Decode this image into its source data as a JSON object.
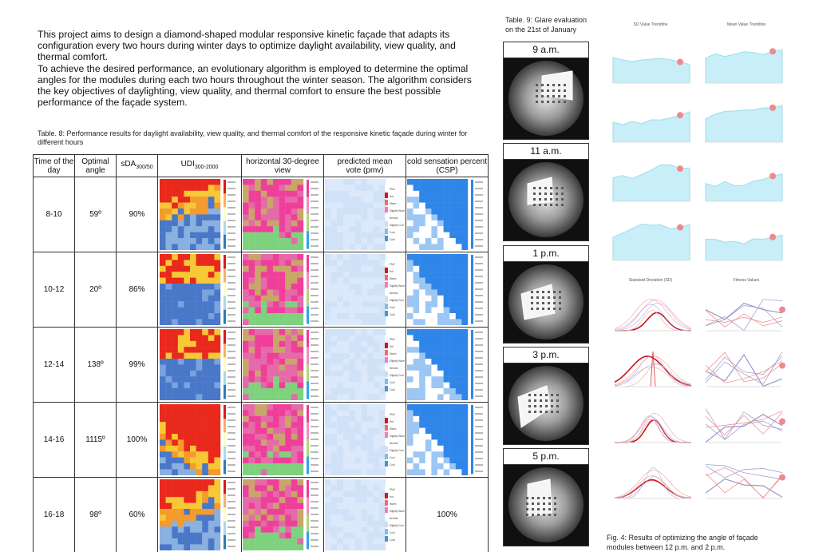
{
  "intro": {
    "paragraph1": "This project aims to design a diamond-shaped modular responsive kinetic façade that adapts its configuration every two hours during winter days to optimize daylight availability, view quality, and thermal comfort.",
    "paragraph2": "To achieve the desired performance, an evolutionary algorithm is employed to determine the optimal angles for the modules during each two hours throughout the winter season. The algorithm considers the key objectives of daylighting, view quality, and thermal comfort to ensure the best possible performance of the façade system."
  },
  "table8": {
    "caption": "Table. 8: Performance results for daylight availability, view quality, and thermal comfort of the responsive kinetic façade during winter for different hours",
    "headers": {
      "time": "Time of the day",
      "angle": "Optimal angle",
      "sda": "sDA",
      "sda_sub": "300/50",
      "udi": "UDI",
      "udi_sub": "300-2000",
      "view": "horizontal 30-degree view",
      "pmv": "predicted mean vote (pmv)",
      "csp": "cold sensation percent (CSP)"
    },
    "rows": [
      {
        "time": "8-10",
        "angle": "59º",
        "sda": "90%",
        "csp_text": ""
      },
      {
        "time": "10-12",
        "angle": "20º",
        "sda": "86%",
        "csp_text": ""
      },
      {
        "time": "12-14",
        "angle": "138º",
        "sda": "99%",
        "csp_text": ""
      },
      {
        "time": "14-16",
        "angle": "1115º",
        "sda": "100%",
        "csp_text": ""
      },
      {
        "time": "16-18",
        "angle": "98º",
        "sda": "60%",
        "csp_text": "100%"
      }
    ],
    "pmv_legend": [
      "PMV",
      "Hot",
      "Warm",
      "Slightly Warm",
      "Neutral",
      "Slightly Cool",
      "Cool",
      "Cold"
    ],
    "colors": {
      "udi_hot": "#e8291c",
      "udi_mid": "#f7c835",
      "udi_cool": "#4a78c8",
      "view_pink": "#ef3f9a",
      "view_green": "#7fd27d",
      "pmv_blue": "#cfe2f8",
      "csp_blue": "#2f86e8"
    }
  },
  "table9": {
    "caption_line1": "Table. 9: Glare evaluation",
    "caption_line2": "on the 21st of January",
    "times": [
      "9 a.m.",
      "11 a.m.",
      "1 p.m.",
      "3 p.m.",
      "5 p.m."
    ]
  },
  "fig4": {
    "titles": [
      "SD Value Trendline",
      "Mean Value Trendline",
      "Standard Deviation (SD)",
      "Fitness Values"
    ],
    "caption_line1": "Fig. 4: Results of optimizing the angle of façade",
    "caption_line2": "modules between 12 p.m. and 2 p.m."
  }
}
